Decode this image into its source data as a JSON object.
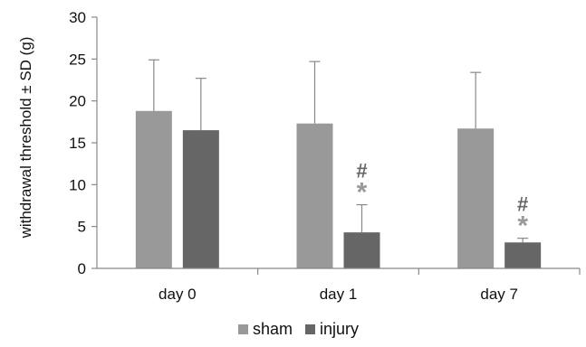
{
  "chart_data": {
    "type": "bar",
    "title": "",
    "xlabel": "",
    "ylabel": "withdrawal threshold ± SD (g)",
    "ylim": [
      0,
      30
    ],
    "yticks": [
      0,
      5,
      10,
      15,
      20,
      25,
      30
    ],
    "categories": [
      "day 0",
      "day 1",
      "day 7"
    ],
    "series": [
      {
        "name": "sham",
        "color": "#999999",
        "values": [
          18.8,
          17.3,
          16.7
        ],
        "sd": [
          6.1,
          7.4,
          6.7
        ]
      },
      {
        "name": "injury",
        "color": "#666666",
        "values": [
          16.5,
          4.3,
          3.1
        ],
        "sd": [
          6.2,
          3.3,
          0.5
        ]
      }
    ],
    "annotations": [
      {
        "category": "day 1",
        "series": "injury",
        "hash": "#",
        "star": "*"
      },
      {
        "category": "day 7",
        "series": "injury",
        "hash": "#",
        "star": "*"
      }
    ],
    "grid": false,
    "legend": "bottom-center"
  }
}
